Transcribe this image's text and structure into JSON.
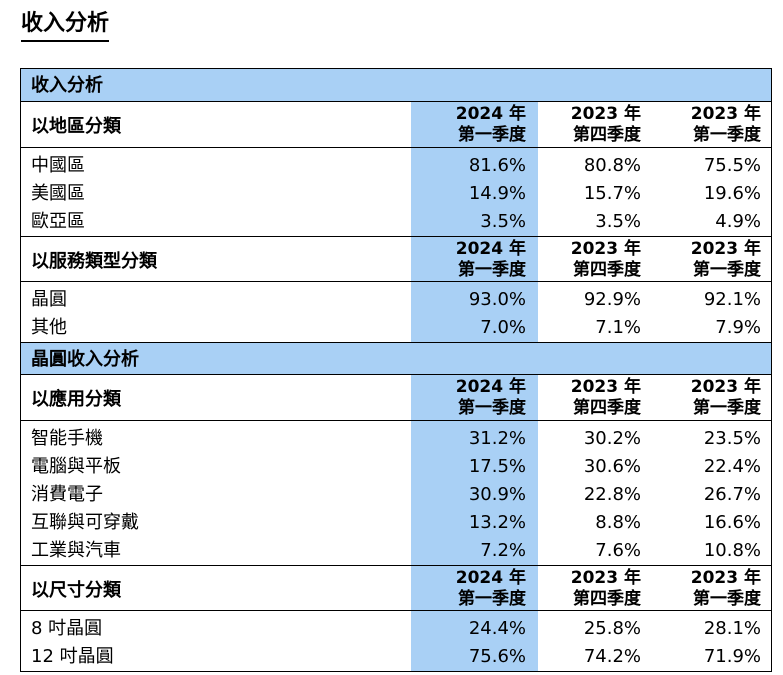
{
  "page_title": "收入分析",
  "table": {
    "band1": "收入分析",
    "band2": "晶圓收入分析",
    "col_headers": [
      {
        "year": "2024 年",
        "quarter": "第一季度"
      },
      {
        "year": "2023 年",
        "quarter": "第四季度"
      },
      {
        "year": "2023 年",
        "quarter": "第一季度"
      }
    ],
    "sections": [
      {
        "title": "以地區分類",
        "rows": [
          {
            "label": "中國區",
            "v1": "81.6%",
            "v2": "80.8%",
            "v3": "75.5%"
          },
          {
            "label": "美國區",
            "v1": "14.9%",
            "v2": "15.7%",
            "v3": "19.6%"
          },
          {
            "label": "歐亞區",
            "v1": "3.5%",
            "v2": "3.5%",
            "v3": "4.9%"
          }
        ]
      },
      {
        "title": "以服務類型分類",
        "rows": [
          {
            "label": "晶圓",
            "v1": "93.0%",
            "v2": "92.9%",
            "v3": "92.1%"
          },
          {
            "label": "其他",
            "v1": "7.0%",
            "v2": "7.1%",
            "v3": "7.9%"
          }
        ]
      },
      {
        "title": "以應用分類",
        "rows": [
          {
            "label": "智能手機",
            "v1": "31.2%",
            "v2": "30.2%",
            "v3": "23.5%"
          },
          {
            "label": "電腦與平板",
            "v1": "17.5%",
            "v2": "30.6%",
            "v3": "22.4%"
          },
          {
            "label": "消費電子",
            "v1": "30.9%",
            "v2": "22.8%",
            "v3": "26.7%"
          },
          {
            "label": "互聯與可穿戴",
            "v1": "13.2%",
            "v2": "8.8%",
            "v3": "16.6%"
          },
          {
            "label": "工業與汽車",
            "v1": "7.2%",
            "v2": "7.6%",
            "v3": "10.8%"
          }
        ]
      },
      {
        "title": "以尺寸分類",
        "rows": [
          {
            "label": "8 吋晶圓",
            "v1": "24.4%",
            "v2": "25.8%",
            "v3": "28.1%"
          },
          {
            "label": "12 吋晶圓",
            "v1": "75.6%",
            "v2": "74.2%",
            "v3": "71.9%"
          }
        ]
      }
    ]
  },
  "colors": {
    "highlight": "#a9d0f5",
    "border": "#000000"
  }
}
